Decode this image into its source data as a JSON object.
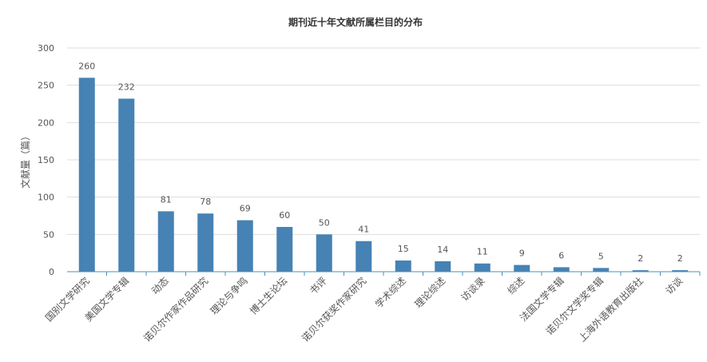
{
  "chart_data": {
    "type": "bar",
    "title": "期刊近十年文献所属栏目的分布",
    "xlabel": "",
    "ylabel": "文献量（篇）",
    "ylim": [
      0,
      300
    ],
    "yticks": [
      0,
      50,
      100,
      150,
      200,
      250,
      300
    ],
    "grid": true,
    "bar_color": "#4682b4",
    "categories": [
      "国别文学研究",
      "美国文学专辑",
      "动态",
      "诺贝尔作家作品研究",
      "理论与争鸣",
      "博士生论坛",
      "书评",
      "诺贝尔获奖作家研究",
      "学术综述",
      "理论综述",
      "访谈录",
      "综述",
      "法国文学专辑",
      "诺贝尔文学奖专辑",
      "上海外语教育出版社",
      "访谈"
    ],
    "values": [
      260,
      232,
      81,
      78,
      69,
      60,
      50,
      41,
      15,
      14,
      11,
      9,
      6,
      5,
      2,
      2
    ]
  }
}
